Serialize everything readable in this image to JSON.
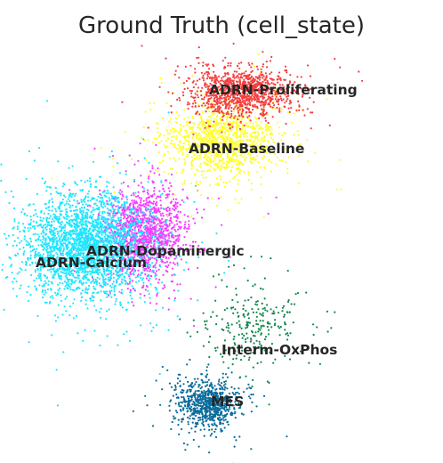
{
  "chart_data": {
    "type": "scatter",
    "title": "Ground Truth (cell_state)",
    "xlabel": "",
    "ylabel": "",
    "axes_visible": false,
    "grid": false,
    "legend": "on-data",
    "clusters": [
      {
        "name": "ADRN-Calcium",
        "color": "#1ee6ff",
        "center": [
          -5.8,
          0.6
        ],
        "spread": [
          1.2,
          1.1
        ],
        "count": 2600
      },
      {
        "name": "ADRN-Dopaminergic",
        "color": "#f53cff",
        "center": [
          -3.5,
          1.2
        ],
        "spread": [
          0.8,
          1.0
        ],
        "count": 1300
      },
      {
        "name": "ADRN-Baseline",
        "color": "#ffff26",
        "center": [
          -0.5,
          5.2
        ],
        "spread": [
          1.1,
          0.8
        ],
        "count": 1100
      },
      {
        "name": "ADRN-Proliferating",
        "color": "#f53e3e",
        "center": [
          0.3,
          7.3
        ],
        "spread": [
          1.0,
          0.5
        ],
        "count": 1100
      },
      {
        "name": "Interm-OxPhos",
        "color": "#13884c",
        "center": [
          0.8,
          -2.8
        ],
        "spread": [
          1.0,
          0.9
        ],
        "count": 260
      },
      {
        "name": "MES",
        "color": "#0a6c9c",
        "center": [
          -1.0,
          -6.2
        ],
        "spread": [
          0.6,
          0.5
        ],
        "count": 800
      }
    ],
    "xlim": [
      -8.5,
      7.5
    ],
    "ylim": [
      -8.0,
      9.0
    ]
  }
}
